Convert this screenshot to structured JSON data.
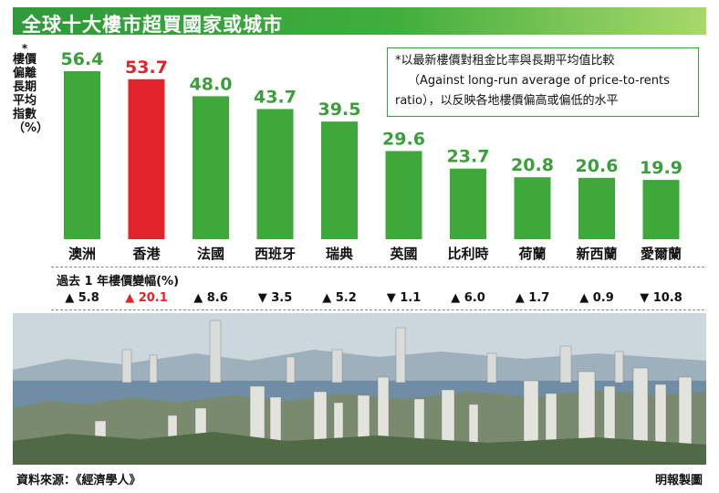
{
  "title": "全球十大樓市超買國家或城市",
  "y_axis_label": "樓價偏離長期平均指數（%）",
  "y_axis_marker": "*",
  "note": {
    "line1": "*以最新樓價對租金比率與長期平均值比較",
    "line2": "（Against long-run average of price-to-rents",
    "line3": "ratio），以反映各地樓價偏高或偏低的水平"
  },
  "colors": {
    "bar_default": "#3ea83a",
    "bar_highlight": "#e0242a",
    "value_default": "#3a9e3a",
    "value_highlight": "#e0242a",
    "title_bar": "#2f9a3a",
    "note_border": "#3a9e3a"
  },
  "chart_data": {
    "type": "bar",
    "categories": [
      "澳洲",
      "香港",
      "法國",
      "西班牙",
      "瑞典",
      "英國",
      "比利時",
      "荷蘭",
      "新西蘭",
      "愛爾蘭"
    ],
    "values": [
      56.4,
      53.7,
      48.0,
      43.7,
      39.5,
      29.6,
      23.7,
      20.8,
      20.6,
      19.9
    ],
    "value_labels": [
      "56.4",
      "53.7",
      "48.0",
      "43.7",
      "39.5",
      "29.6",
      "23.7",
      "20.8",
      "20.6",
      "19.9"
    ],
    "highlight_category": "香港",
    "ylim": [
      0,
      56.4
    ],
    "grid": false,
    "legend": "none"
  },
  "price_change": {
    "title": "過去 1 年樓價變幅(%)",
    "items": [
      {
        "text": "▲ 5.8",
        "highlight": false
      },
      {
        "text": "▲ 20.1",
        "highlight": true
      },
      {
        "text": "▲ 8.6",
        "highlight": false
      },
      {
        "text": "▼ 3.5",
        "highlight": false
      },
      {
        "text": "▲ 5.2",
        "highlight": false
      },
      {
        "text": "▼ 1.1",
        "highlight": false
      },
      {
        "text": "▲ 6.0",
        "highlight": false
      },
      {
        "text": "▲ 1.7",
        "highlight": false
      },
      {
        "text": "▲ 0.9",
        "highlight": false
      },
      {
        "text": "▼ 10.8",
        "highlight": false
      }
    ]
  },
  "photo": {
    "subject": "hong-kong-skyline-photo"
  },
  "source": "資料來源：《經濟學人》",
  "credit": "明報製圖"
}
